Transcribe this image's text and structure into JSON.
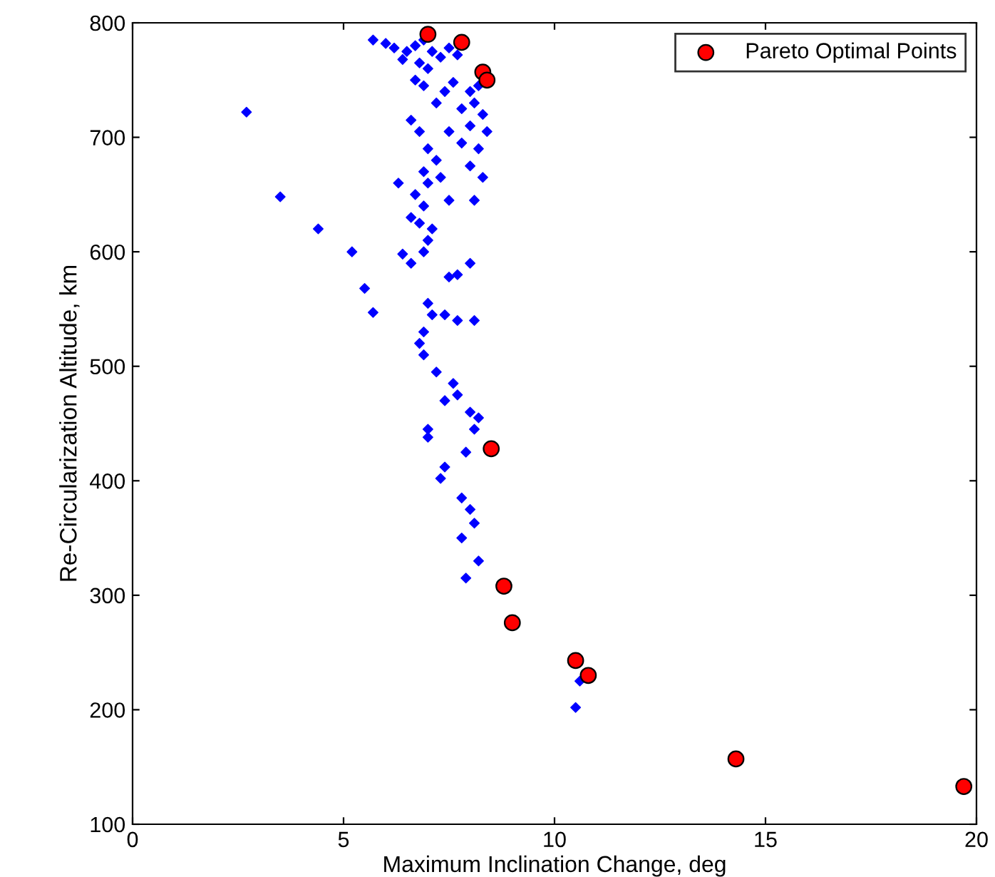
{
  "chart_data": {
    "type": "scatter",
    "xlabel": "Maximum Inclination Change, deg",
    "ylabel": "Re-Circularization Altitude, km",
    "xlim": [
      0,
      20
    ],
    "ylim": [
      100,
      800
    ],
    "xticks": [
      0,
      5,
      10,
      15,
      20
    ],
    "yticks": [
      100,
      200,
      300,
      400,
      500,
      600,
      700,
      800
    ],
    "grid": false,
    "legend": "top right",
    "series": [
      {
        "color": "#0000ff",
        "marker": "diamond",
        "x": [
          5.7,
          6.0,
          6.2,
          6.5,
          6.7,
          6.9,
          7.1,
          7.3,
          7.5,
          7.7,
          6.4,
          6.8,
          7.0,
          6.7,
          6.9,
          7.4,
          7.6,
          8.0,
          8.2,
          7.2,
          7.8,
          8.1,
          8.3,
          6.6,
          6.8,
          7.5,
          8.0,
          8.4,
          2.7,
          7.0,
          7.2,
          7.8,
          8.2,
          6.9,
          7.0,
          7.3,
          8.0,
          8.3,
          6.7,
          6.9,
          7.5,
          8.1,
          6.3,
          6.6,
          6.8,
          7.1,
          7.0,
          6.9,
          6.6,
          6.4,
          3.5,
          4.4,
          5.2,
          5.5,
          5.7,
          7.5,
          7.7,
          8.0,
          7.4,
          7.7,
          8.1,
          7.0,
          7.1,
          6.9,
          6.8,
          6.9,
          7.2,
          7.6,
          7.7,
          7.4,
          8.0,
          8.2,
          8.1,
          7.0,
          7.0,
          7.9,
          7.4,
          7.3,
          7.8,
          8.0,
          8.1,
          7.8,
          8.2,
          7.9,
          10.5,
          10.6
        ],
        "values": [
          785,
          782,
          778,
          775,
          780,
          785,
          775,
          770,
          778,
          772,
          768,
          765,
          760,
          750,
          745,
          740,
          748,
          740,
          745,
          730,
          725,
          730,
          720,
          715,
          705,
          705,
          710,
          705,
          722,
          690,
          680,
          695,
          690,
          670,
          660,
          665,
          675,
          665,
          650,
          640,
          645,
          645,
          660,
          630,
          625,
          620,
          610,
          600,
          590,
          598,
          648,
          620,
          600,
          568,
          547,
          578,
          580,
          590,
          545,
          540,
          540,
          555,
          545,
          530,
          520,
          510,
          495,
          485,
          475,
          470,
          460,
          455,
          445,
          445,
          438,
          425,
          412,
          402,
          385,
          375,
          363,
          350,
          330,
          315,
          202,
          225
        ]
      },
      {
        "name": "Pareto Optimal Points",
        "color": "#ff0000",
        "marker": "circle",
        "x": [
          7.0,
          7.8,
          8.3,
          8.4,
          8.5,
          8.8,
          9.0,
          10.5,
          10.8,
          14.3,
          19.7
        ],
        "values": [
          790,
          783,
          757,
          750,
          428,
          308,
          276,
          243,
          230,
          157,
          133
        ]
      }
    ]
  }
}
